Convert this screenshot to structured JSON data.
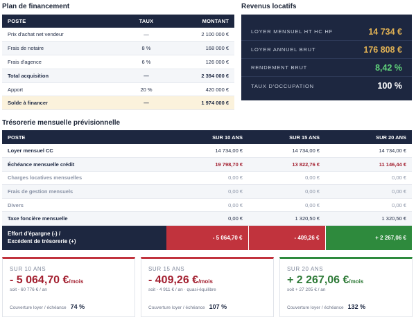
{
  "financement": {
    "title": "Plan de financement",
    "headers": [
      "POSTE",
      "TAUX",
      "MONTANT"
    ],
    "rows": [
      {
        "poste": "Prix d'achat net vendeur",
        "taux": "—",
        "montant": "2 100 000 €"
      },
      {
        "poste": "Frais de notaire",
        "taux": "8 %",
        "montant": "168 000 €"
      },
      {
        "poste": "Frais d'agence",
        "taux": "6 %",
        "montant": "126 000 €"
      },
      {
        "poste": "Total acquisition",
        "taux": "—",
        "montant": "2 394 000 €"
      },
      {
        "poste": "Apport",
        "taux": "20 %",
        "montant": "420 000 €"
      },
      {
        "poste": "Solde à financer",
        "taux": "—",
        "montant": "1 974 000 €"
      }
    ]
  },
  "revenus": {
    "title": "Revenus locatifs",
    "rows": [
      {
        "label": "LOYER MENSUEL HT HC HF",
        "value": "14 734 €",
        "color": "#e0b154"
      },
      {
        "label": "LOYER ANNUEL BRUT",
        "value": "176 808 €",
        "color": "#e0b154"
      },
      {
        "label": "RENDEMENT BRUT",
        "value": "8,42 %",
        "color": "#5fd07a"
      },
      {
        "label": "TAUX D'OCCUPATION",
        "value": "100 %",
        "color": "#ffffff"
      }
    ]
  },
  "tresorerie": {
    "title": "Trésorerie mensuelle prévisionnelle",
    "headers": [
      "POSTE",
      "SUR 10 ANS",
      "SUR 15 ANS",
      "SUR 20 ANS"
    ],
    "rows": [
      {
        "poste": "Loyer mensuel CC",
        "v10": "14 734,00 €",
        "v15": "14 734,00 €",
        "v20": "14 734,00 €"
      },
      {
        "poste": "Échéance mensuelle crédit",
        "v10": "19 798,70 €",
        "v15": "13 822,76 €",
        "v20": "11 146,44 €"
      },
      {
        "poste": "Charges locatives mensuelles",
        "v10": "0,00 €",
        "v15": "0,00 €",
        "v20": "0,00 €"
      },
      {
        "poste": "Frais de gestion mensuels",
        "v10": "0,00 €",
        "v15": "0,00 €",
        "v20": "0,00 €"
      },
      {
        "poste": "Divers",
        "v10": "0,00 €",
        "v15": "0,00 €",
        "v20": "0,00 €"
      },
      {
        "poste": "Taxe foncière mensuelle",
        "v10": "0,00 €",
        "v15": "1 320,50 €",
        "v20": "1 320,50 €"
      }
    ],
    "effort": {
      "label_line1": "Effort d'épargne (-) /",
      "label_line2": "Excédent de trésorerie (+)",
      "v10": "- 5 064,70 €",
      "v15": "- 409,26 €",
      "v20": "+ 2 267,06 €"
    }
  },
  "cards": [
    {
      "period": "SUR 10 ANS",
      "amount": "- 5 064,70 €",
      "unit": "/mois",
      "sub": "soit - 60 776 € / an",
      "cov_label": "Couverture loyer / échéance",
      "cov_value": "74 %",
      "accent": "#c1333d"
    },
    {
      "period": "SUR 15 ANS",
      "amount": "- 409,26 €",
      "unit": "/mois",
      "sub": "soit - 4 911 € / an · quasi-équilibre",
      "cov_label": "Couverture loyer / échéance",
      "cov_value": "107 %",
      "accent": "#c1333d"
    },
    {
      "period": "SUR 20 ANS",
      "amount": "+ 2 267,06 €",
      "unit": "/mois",
      "sub": "soit + 27 205 € / an",
      "cov_label": "Couverture loyer / échéance",
      "cov_value": "132 %",
      "accent": "#2e8a3d"
    }
  ]
}
